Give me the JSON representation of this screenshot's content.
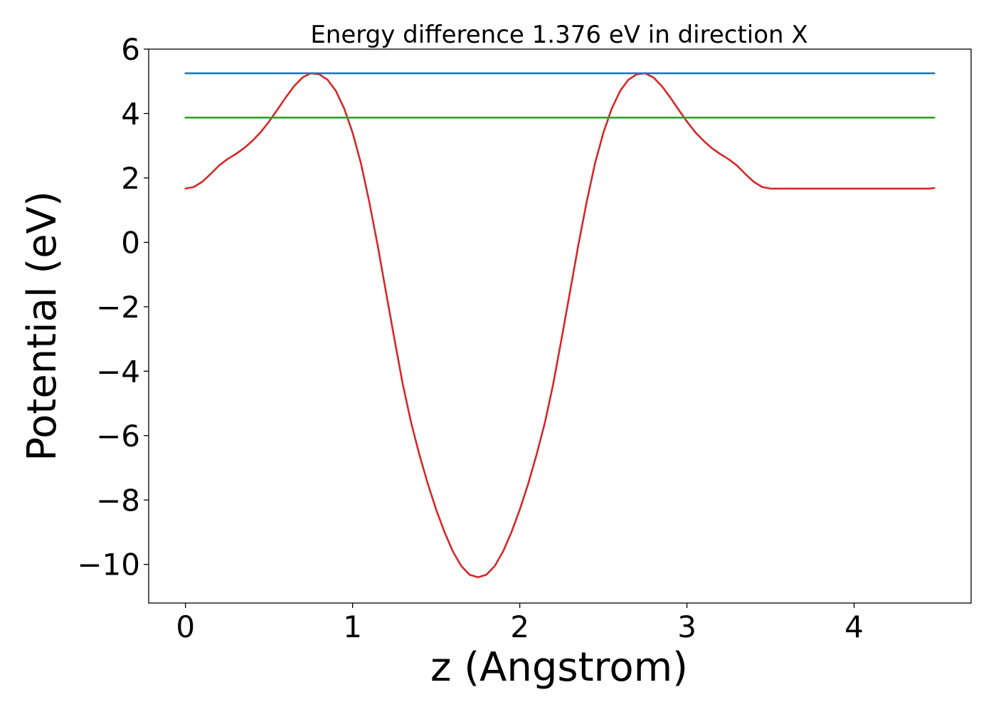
{
  "chart_data": {
    "type": "line",
    "title": "Energy difference 1.376 eV in direction X",
    "xlabel": "z (Angstrom)",
    "ylabel": "Potential (eV)",
    "xlim": [
      -0.22,
      4.7
    ],
    "ylim": [
      -11.2,
      6.0
    ],
    "xticks": [
      0,
      1,
      2,
      3,
      4
    ],
    "yticks": [
      -10,
      -8,
      -6,
      -4,
      -2,
      0,
      2,
      4,
      6
    ],
    "xtick_labels": [
      "0",
      "1",
      "2",
      "3",
      "4"
    ],
    "ytick_labels": [
      "−10",
      "−8",
      "−6",
      "−4",
      "−2",
      "0",
      "2",
      "4",
      "6"
    ],
    "grid": false,
    "series": [
      {
        "color": "#d62728",
        "x": [
          0.0,
          0.05,
          0.1,
          0.15,
          0.2,
          0.25,
          0.3,
          0.35,
          0.4,
          0.45,
          0.5,
          0.55,
          0.6,
          0.65,
          0.7,
          0.75,
          0.8,
          0.85,
          0.9,
          0.95,
          1.0,
          1.05,
          1.1,
          1.15,
          1.2,
          1.25,
          1.3,
          1.35,
          1.4,
          1.45,
          1.5,
          1.55,
          1.6,
          1.65,
          1.7,
          1.75,
          1.8,
          1.85,
          1.9,
          1.95,
          2.0,
          2.05,
          2.1,
          2.15,
          2.2,
          2.25,
          2.3,
          2.35,
          2.4,
          2.45,
          2.5,
          2.55,
          2.6,
          2.65,
          2.7,
          2.75,
          2.8,
          2.85,
          2.9,
          2.95,
          3.0,
          3.05,
          3.1,
          3.15,
          3.2,
          3.25,
          3.3,
          3.35,
          3.4,
          3.45,
          3.5,
          3.55,
          3.6,
          3.65,
          3.7,
          3.75,
          3.8,
          3.85,
          3.9,
          3.95,
          4.0,
          4.05,
          4.1,
          4.15,
          4.2,
          4.25,
          4.3,
          4.35,
          4.4,
          4.45,
          4.48
        ],
        "y": [
          1.67,
          1.72,
          1.88,
          2.12,
          2.38,
          2.58,
          2.74,
          2.92,
          3.15,
          3.42,
          3.75,
          4.12,
          4.5,
          4.85,
          5.12,
          5.25,
          5.22,
          5.05,
          4.7,
          4.15,
          3.4,
          2.45,
          1.25,
          -0.1,
          -1.55,
          -3.0,
          -4.4,
          -5.6,
          -6.6,
          -7.5,
          -8.3,
          -9.0,
          -9.6,
          -10.05,
          -10.32,
          -10.4,
          -10.32,
          -10.05,
          -9.6,
          -9.0,
          -8.3,
          -7.5,
          -6.6,
          -5.6,
          -4.4,
          -3.0,
          -1.55,
          -0.1,
          1.25,
          2.45,
          3.4,
          4.15,
          4.7,
          5.05,
          5.22,
          5.25,
          5.12,
          4.85,
          4.5,
          4.12,
          3.75,
          3.42,
          3.15,
          2.92,
          2.74,
          2.58,
          2.38,
          2.12,
          1.88,
          1.72,
          1.67,
          1.67,
          1.67,
          1.67,
          1.67,
          1.67,
          1.67,
          1.67,
          1.67,
          1.67,
          1.67,
          1.67,
          1.67,
          1.67,
          1.67,
          1.67,
          1.67,
          1.67,
          1.67,
          1.67,
          1.69
        ]
      },
      {
        "color": "#1f77b4",
        "x": [
          0.0,
          4.48
        ],
        "y": [
          5.25,
          5.25
        ]
      },
      {
        "color": "#2ca02c",
        "x": [
          0.0,
          4.48
        ],
        "y": [
          3.874,
          3.874
        ]
      }
    ]
  }
}
